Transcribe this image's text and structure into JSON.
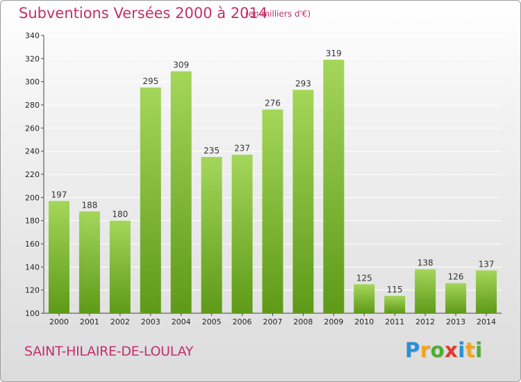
{
  "header": {
    "title": "Subventions Versées 2000 à 2014",
    "subtitle": "(en milliers d'€)"
  },
  "footer": {
    "place": "SAINT-HILAIRE-DE-LOULAY",
    "logo": {
      "letters": [
        "P",
        "r",
        "o",
        "x",
        "i",
        "t",
        "i"
      ],
      "colors": [
        "#2a8fd6",
        "#f2a51a",
        "#4cae2e",
        "#e03a2e",
        "#2a8fd6",
        "#f2a51a",
        "#4cae2e"
      ]
    }
  },
  "colors": {
    "accent": "#c0306a",
    "bar_top": "#a4d65a",
    "bar_bottom": "#5e9a18"
  },
  "chart_data": {
    "type": "bar",
    "categories": [
      "2000",
      "2001",
      "2002",
      "2003",
      "2004",
      "2005",
      "2006",
      "2007",
      "2008",
      "2009",
      "2010",
      "2011",
      "2012",
      "2013",
      "2014"
    ],
    "values": [
      197,
      188,
      180,
      295,
      309,
      235,
      237,
      276,
      293,
      319,
      125,
      115,
      138,
      126,
      137
    ],
    "ylim": [
      100,
      340
    ],
    "yticks": [
      100,
      120,
      140,
      160,
      180,
      200,
      220,
      240,
      260,
      280,
      300,
      320,
      340
    ],
    "grid": true
  }
}
